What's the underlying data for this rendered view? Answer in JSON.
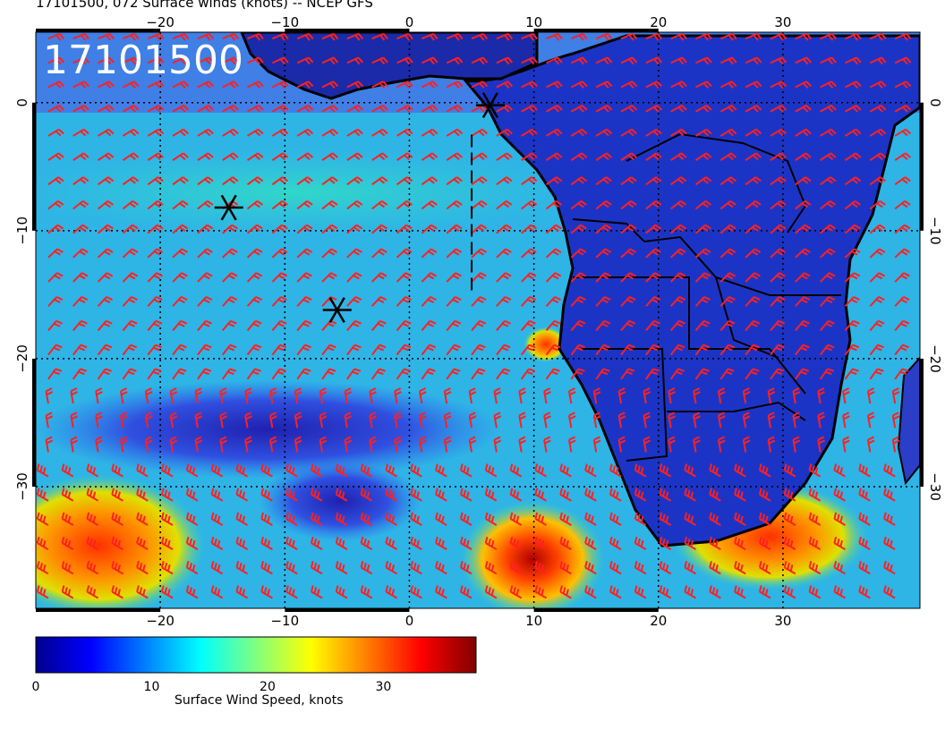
{
  "header": {
    "title": "17101500, 072 Surface winds (knots) -- NCEP GFS",
    "overlay_label": "17101500"
  },
  "map": {
    "projection": "cylindrical",
    "lon_range": [
      -30,
      41
    ],
    "lat_range": [
      5.5,
      -39.5
    ],
    "lon_ticks": [
      -20,
      -10,
      0,
      10,
      20,
      30
    ],
    "lat_ticks": [
      0,
      -10,
      -20,
      -30
    ],
    "lon_tick_labels": [
      "−20",
      "−10",
      "0",
      "10",
      "20",
      "30"
    ],
    "lat_tick_labels": [
      "0",
      "−10",
      "−20",
      "−30"
    ],
    "grid": "dotted",
    "barb_color": "#ff2020",
    "land_outline_color": "#000000",
    "markers": [
      {
        "name": "storm-marker-1",
        "lon": 6.5,
        "lat": -0.2
      },
      {
        "name": "storm-marker-2",
        "lon": -14.5,
        "lat": -8.2
      },
      {
        "name": "storm-marker-3",
        "lon": -5.8,
        "lat": -16.2
      }
    ],
    "track_line": {
      "lon": 5.0,
      "lat_from": -2.5,
      "lat_to": -15.0,
      "style": "dashed"
    }
  },
  "colorbar": {
    "caption": "Surface Wind Speed, knots",
    "tick_labels": [
      "0",
      "10",
      "20",
      "30"
    ],
    "range": [
      0,
      38
    ],
    "colors": [
      "#00008f",
      "#0000ff",
      "#0080ff",
      "#00ffff",
      "#80ff80",
      "#ffff00",
      "#ff8000",
      "#ff0000",
      "#800000"
    ]
  }
}
